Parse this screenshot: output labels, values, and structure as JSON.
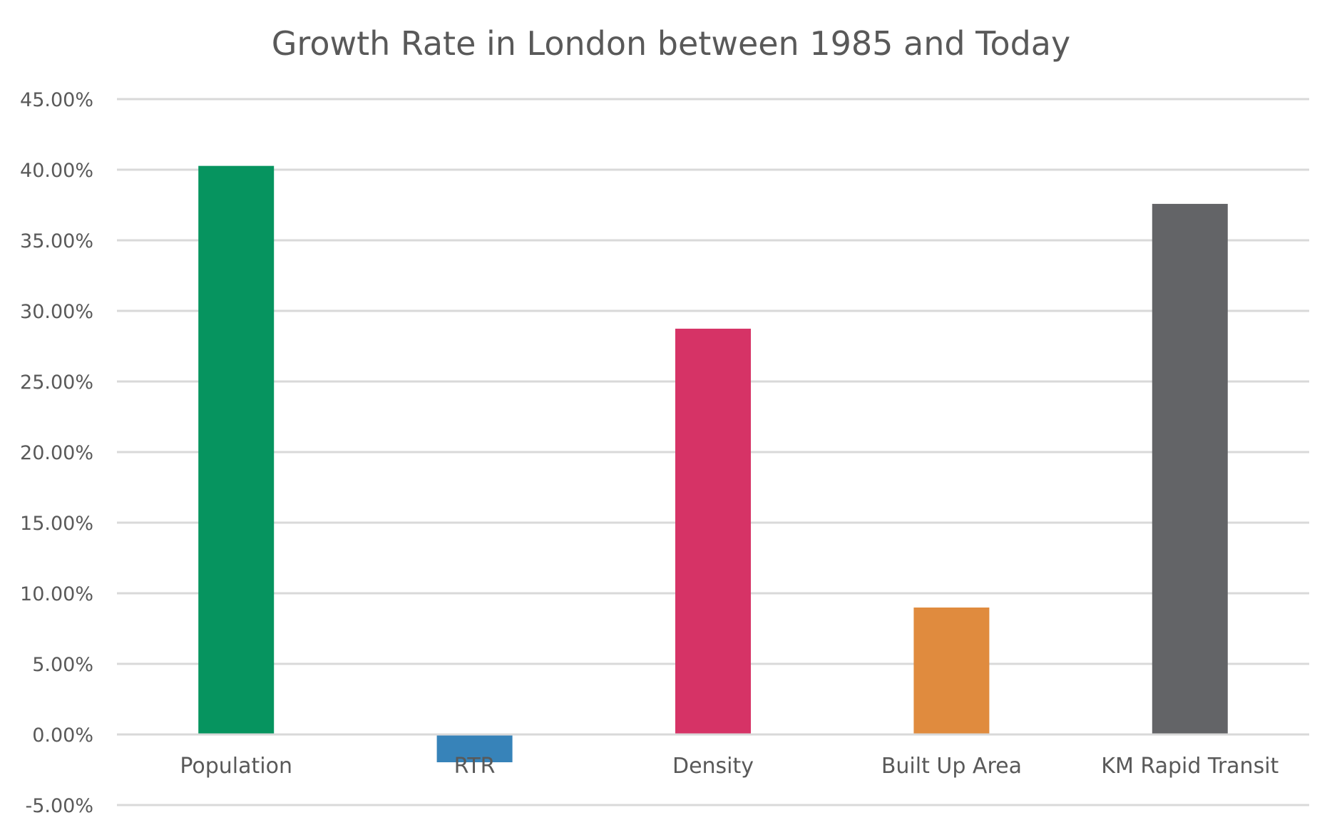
{
  "chart_data": {
    "type": "bar",
    "title": "Growth Rate in London between 1985 and Today",
    "xlabel": "",
    "ylabel": "",
    "categories": [
      "Population",
      "RTR",
      "Density",
      "Built Up Area",
      "KM Rapid Transit"
    ],
    "values": [
      40.27,
      -1.97,
      28.74,
      8.99,
      37.58
    ],
    "value_unit": "%",
    "colors": [
      "#06945F",
      "#3783B9",
      "#D63366",
      "#E08B3E",
      "#636467"
    ],
    "ylim": [
      -5,
      45
    ],
    "yticks": [
      -5,
      0,
      5,
      10,
      15,
      20,
      25,
      30,
      35,
      40,
      45
    ],
    "ytick_labels": [
      "-5.00%",
      "0.00%",
      "5.00%",
      "10.00%",
      "15.00%",
      "20.00%",
      "25.00%",
      "30.00%",
      "35.00%",
      "40.00%",
      "45.00%"
    ],
    "grid": true,
    "legend": "none",
    "gridline_color": "#D9D9D9",
    "text_color": "#595959"
  }
}
